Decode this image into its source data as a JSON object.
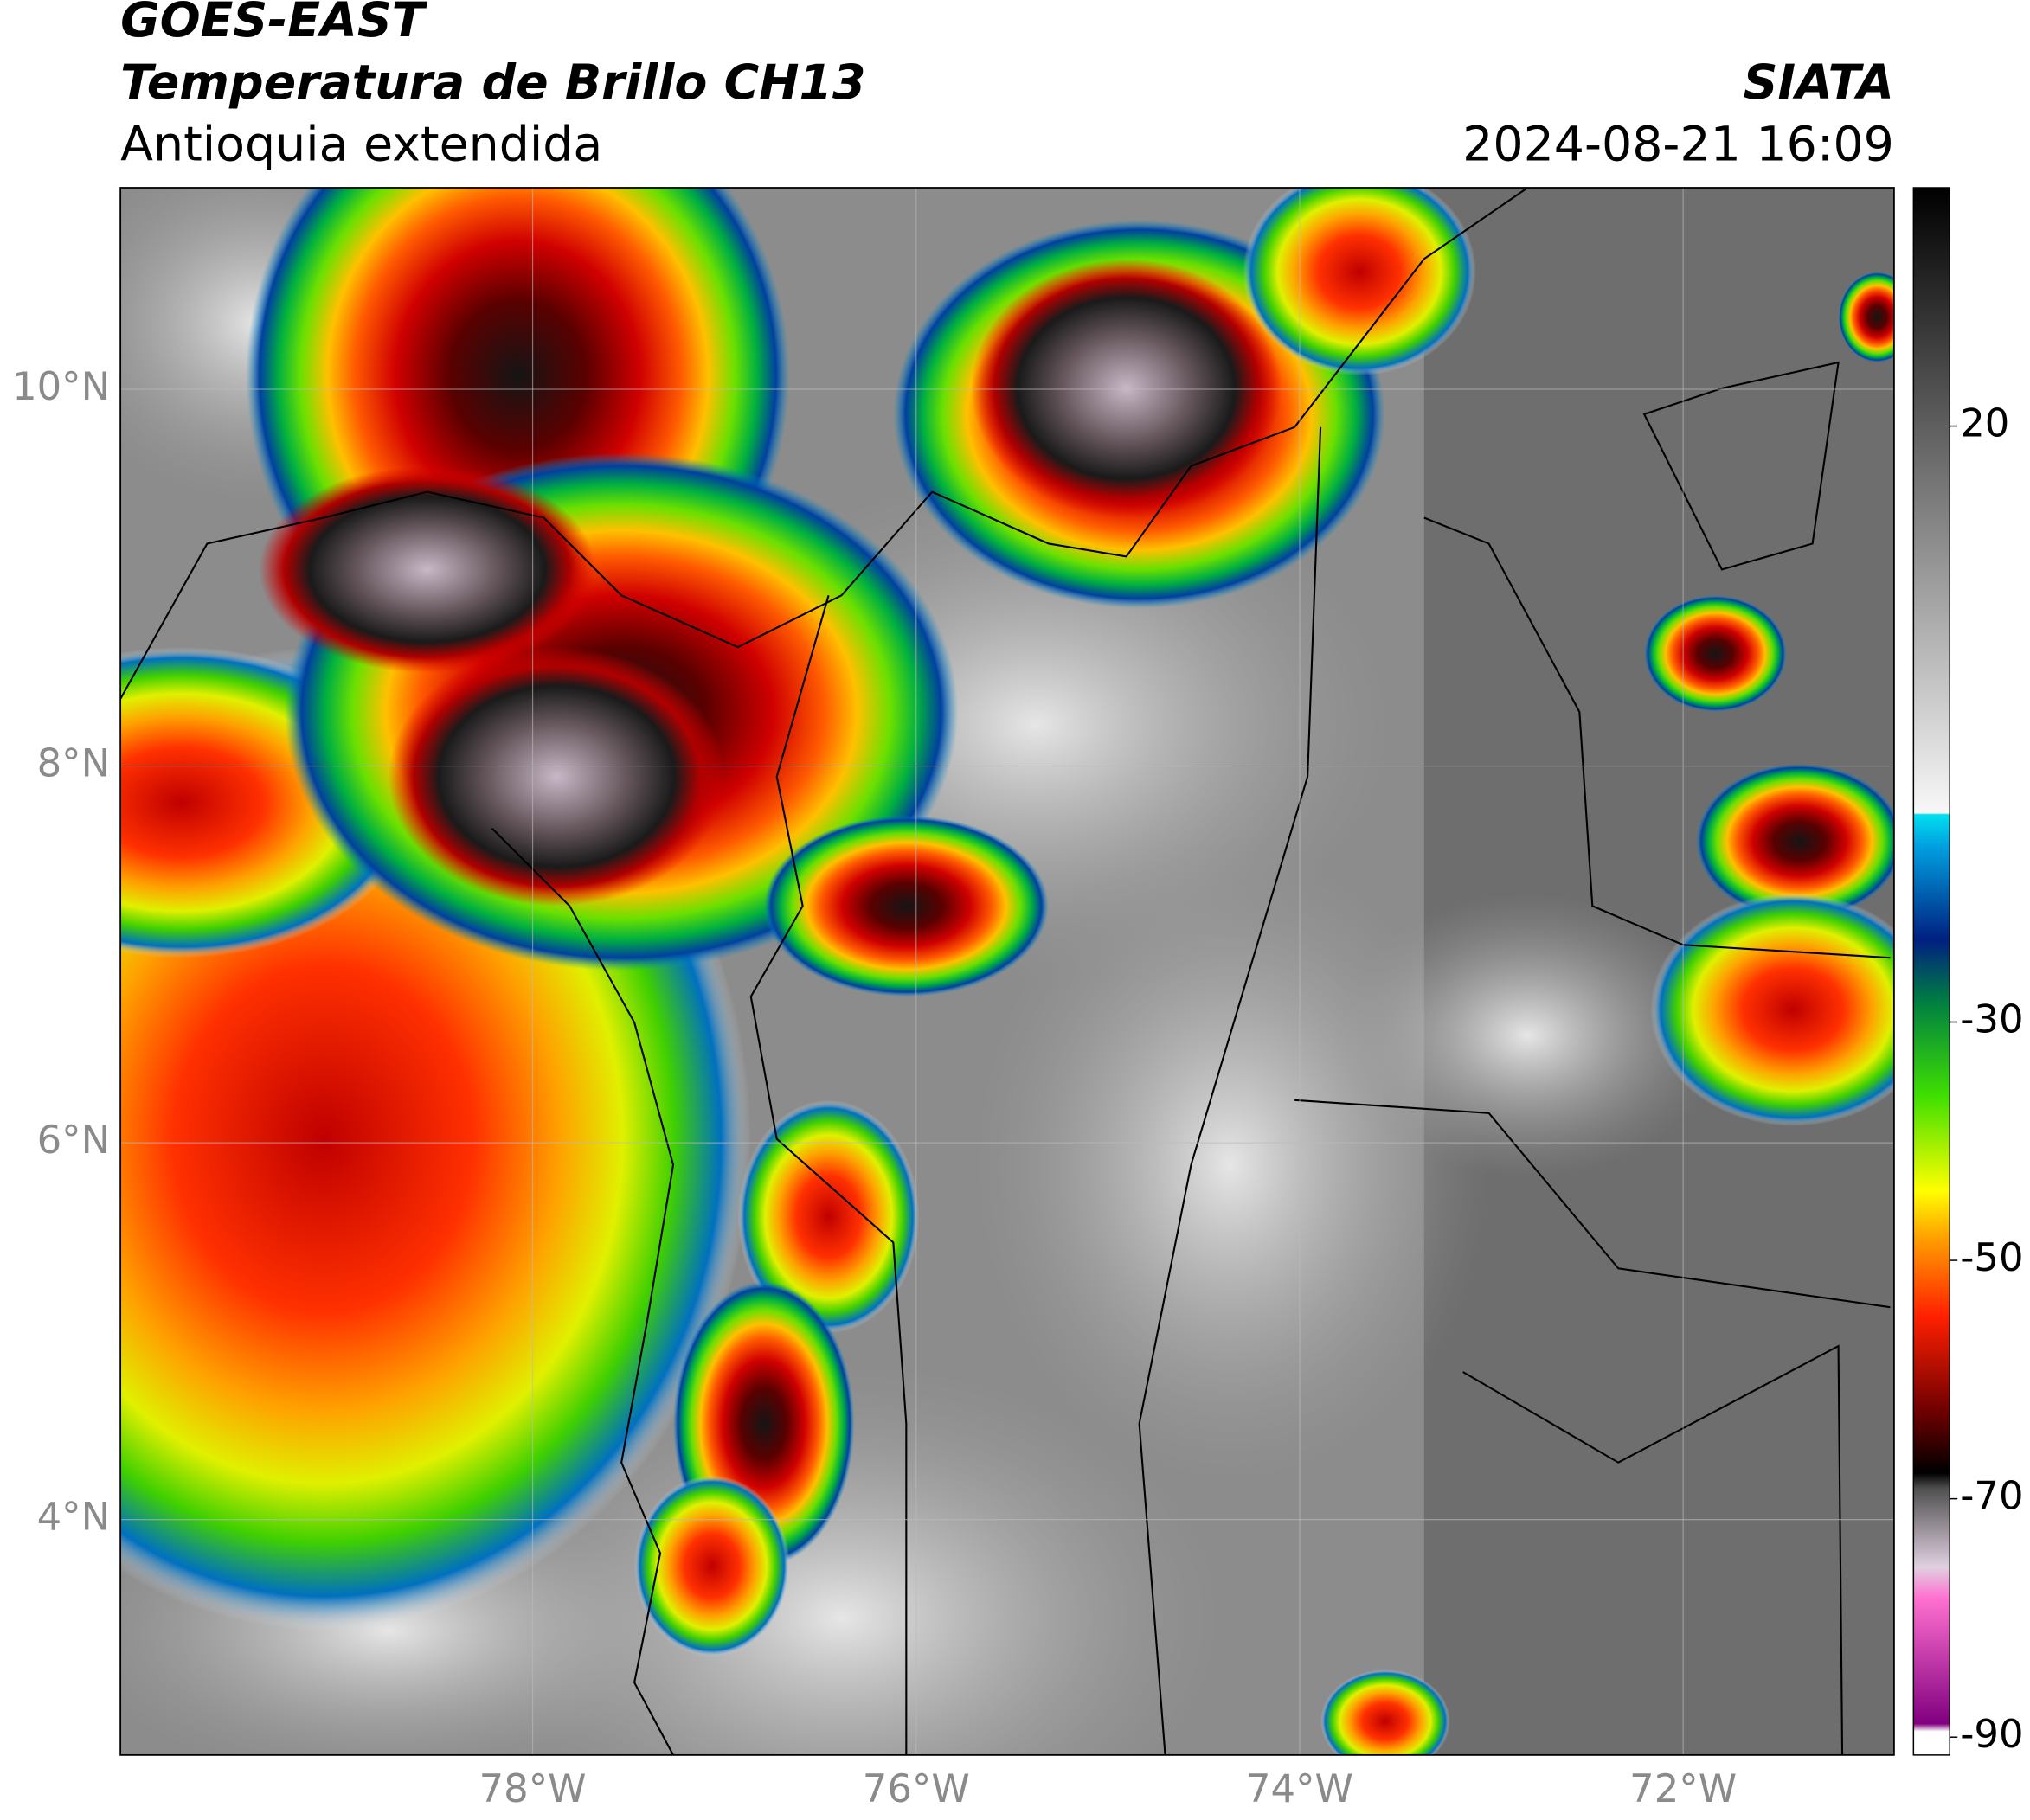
{
  "header": {
    "title": "GOES-EAST",
    "subtitle": "Temperatura de Brillo CH13",
    "region": "Antioquia extendida",
    "source": "SIATA",
    "datetime": "2024-08-21 16:09"
  },
  "map": {
    "xlim": [
      -80.15,
      -70.9
    ],
    "ylim": [
      2.75,
      11.07
    ],
    "xticks": [
      {
        "value": -78,
        "label": "78°W"
      },
      {
        "value": -76,
        "label": "76°W"
      },
      {
        "value": -74,
        "label": "74°W"
      },
      {
        "value": -72,
        "label": "72°W"
      }
    ],
    "yticks": [
      {
        "value": 4,
        "label": "4°N"
      },
      {
        "value": 6,
        "label": "6°N"
      },
      {
        "value": 8,
        "label": "8°N"
      },
      {
        "value": 10,
        "label": "10°N"
      }
    ],
    "grid": true
  },
  "colorbar": {
    "lim": [
      -91.5,
      40
    ],
    "ticks": [
      20,
      -30,
      -50,
      -70,
      -90
    ]
  }
}
